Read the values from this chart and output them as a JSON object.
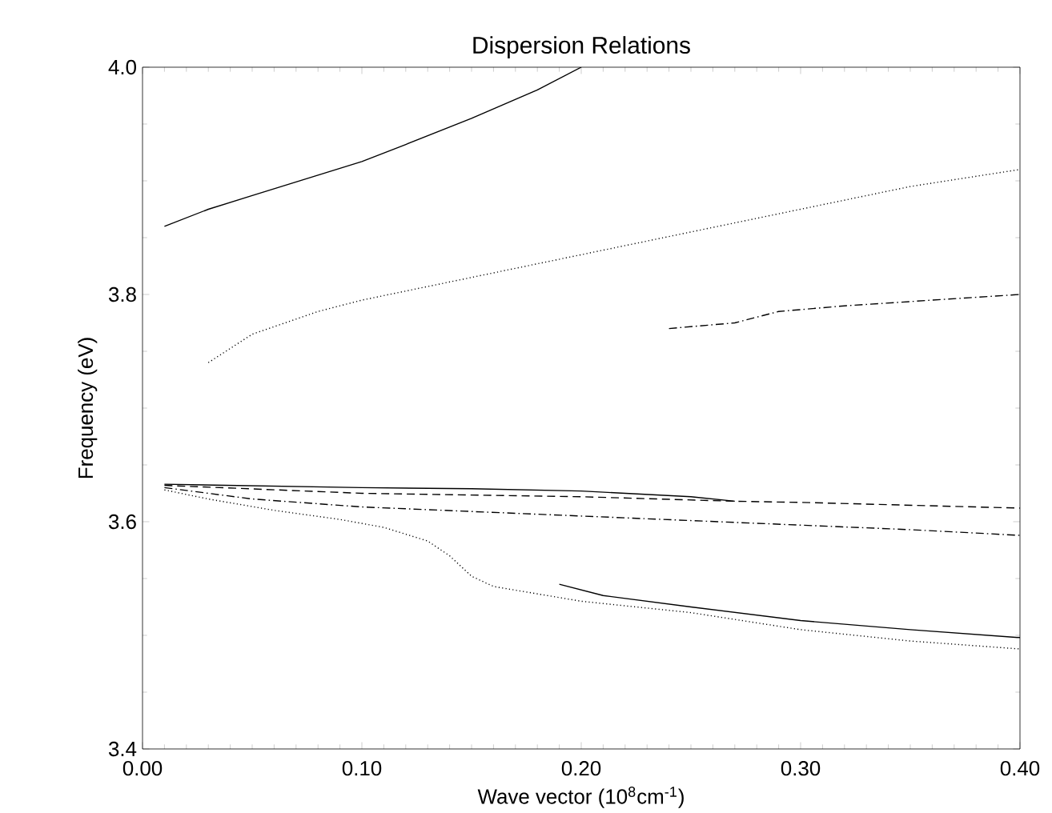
{
  "chart_data": {
    "type": "line",
    "title": "Dispersion Relations",
    "xlabel": "Wave vector (10$^{8}$cm$^{-1}$)",
    "ylabel": "Frequency (eV)",
    "xlim": [
      0,
      0.4
    ],
    "ylim": [
      3.4,
      4.0
    ],
    "xticks": [
      {
        "value": 0,
        "label": "0.00"
      },
      {
        "value": 0.1,
        "label": "0.10"
      },
      {
        "value": 0.2,
        "label": "0.20"
      },
      {
        "value": 0.3,
        "label": "0.30"
      },
      {
        "value": 0.4,
        "label": "0.40"
      }
    ],
    "yticks": [
      3.4,
      3.6,
      3.8,
      {
        "value": 4.0,
        "label": "4.0"
      }
    ],
    "grid": false,
    "marker": "none",
    "series": [
      {
        "color": "#000000",
        "line_style": "solid",
        "x": [
          0.01,
          0.03,
          0.05,
          0.08,
          0.1,
          0.12,
          0.15,
          0.18,
          0.2
        ],
        "values": [
          3.86,
          3.875,
          3.887,
          3.905,
          3.917,
          3.932,
          3.955,
          3.98,
          4.0
        ]
      },
      {
        "color": "#000000",
        "line_style": "dotted",
        "x": [
          0.03,
          0.05,
          0.08,
          0.1,
          0.15,
          0.2,
          0.25,
          0.3,
          0.35,
          0.4
        ],
        "values": [
          3.74,
          3.765,
          3.785,
          3.795,
          3.815,
          3.835,
          3.855,
          3.875,
          3.895,
          3.91
        ]
      },
      {
        "color": "#000000",
        "line_style": "dashdot",
        "x": [
          0.24,
          0.27,
          0.29,
          0.32,
          0.36,
          0.4
        ],
        "values": [
          3.77,
          3.775,
          3.785,
          3.79,
          3.795,
          3.8
        ]
      },
      {
        "color": "#000000",
        "line_style": "solid",
        "x": [
          0.01,
          0.1,
          0.15,
          0.2,
          0.25,
          0.27
        ],
        "values": [
          3.633,
          3.63,
          3.629,
          3.627,
          3.622,
          3.618
        ]
      },
      {
        "color": "#000000",
        "line_style": "dashed",
        "x": [
          0.01,
          0.1,
          0.2,
          0.27,
          0.3,
          0.4
        ],
        "values": [
          3.632,
          3.625,
          3.622,
          3.618,
          3.617,
          3.612
        ]
      },
      {
        "color": "#000000",
        "line_style": "dashdot",
        "x": [
          0.01,
          0.05,
          0.1,
          0.2,
          0.3,
          0.35,
          0.4
        ],
        "values": [
          3.63,
          3.62,
          3.613,
          3.605,
          3.597,
          3.593,
          3.588
        ]
      },
      {
        "color": "#000000",
        "line_style": "dotted",
        "x": [
          0.01,
          0.03,
          0.06,
          0.09,
          0.11,
          0.13,
          0.14,
          0.15,
          0.16,
          0.2,
          0.25,
          0.3,
          0.35,
          0.4
        ],
        "values": [
          3.628,
          3.62,
          3.61,
          3.602,
          3.595,
          3.583,
          3.57,
          3.552,
          3.543,
          3.53,
          3.52,
          3.505,
          3.495,
          3.488
        ]
      },
      {
        "color": "#000000",
        "line_style": "solid",
        "x": [
          0.19,
          0.21,
          0.25,
          0.3,
          0.35,
          0.4
        ],
        "values": [
          3.545,
          3.535,
          3.525,
          3.513,
          3.505,
          3.498
        ]
      }
    ]
  }
}
